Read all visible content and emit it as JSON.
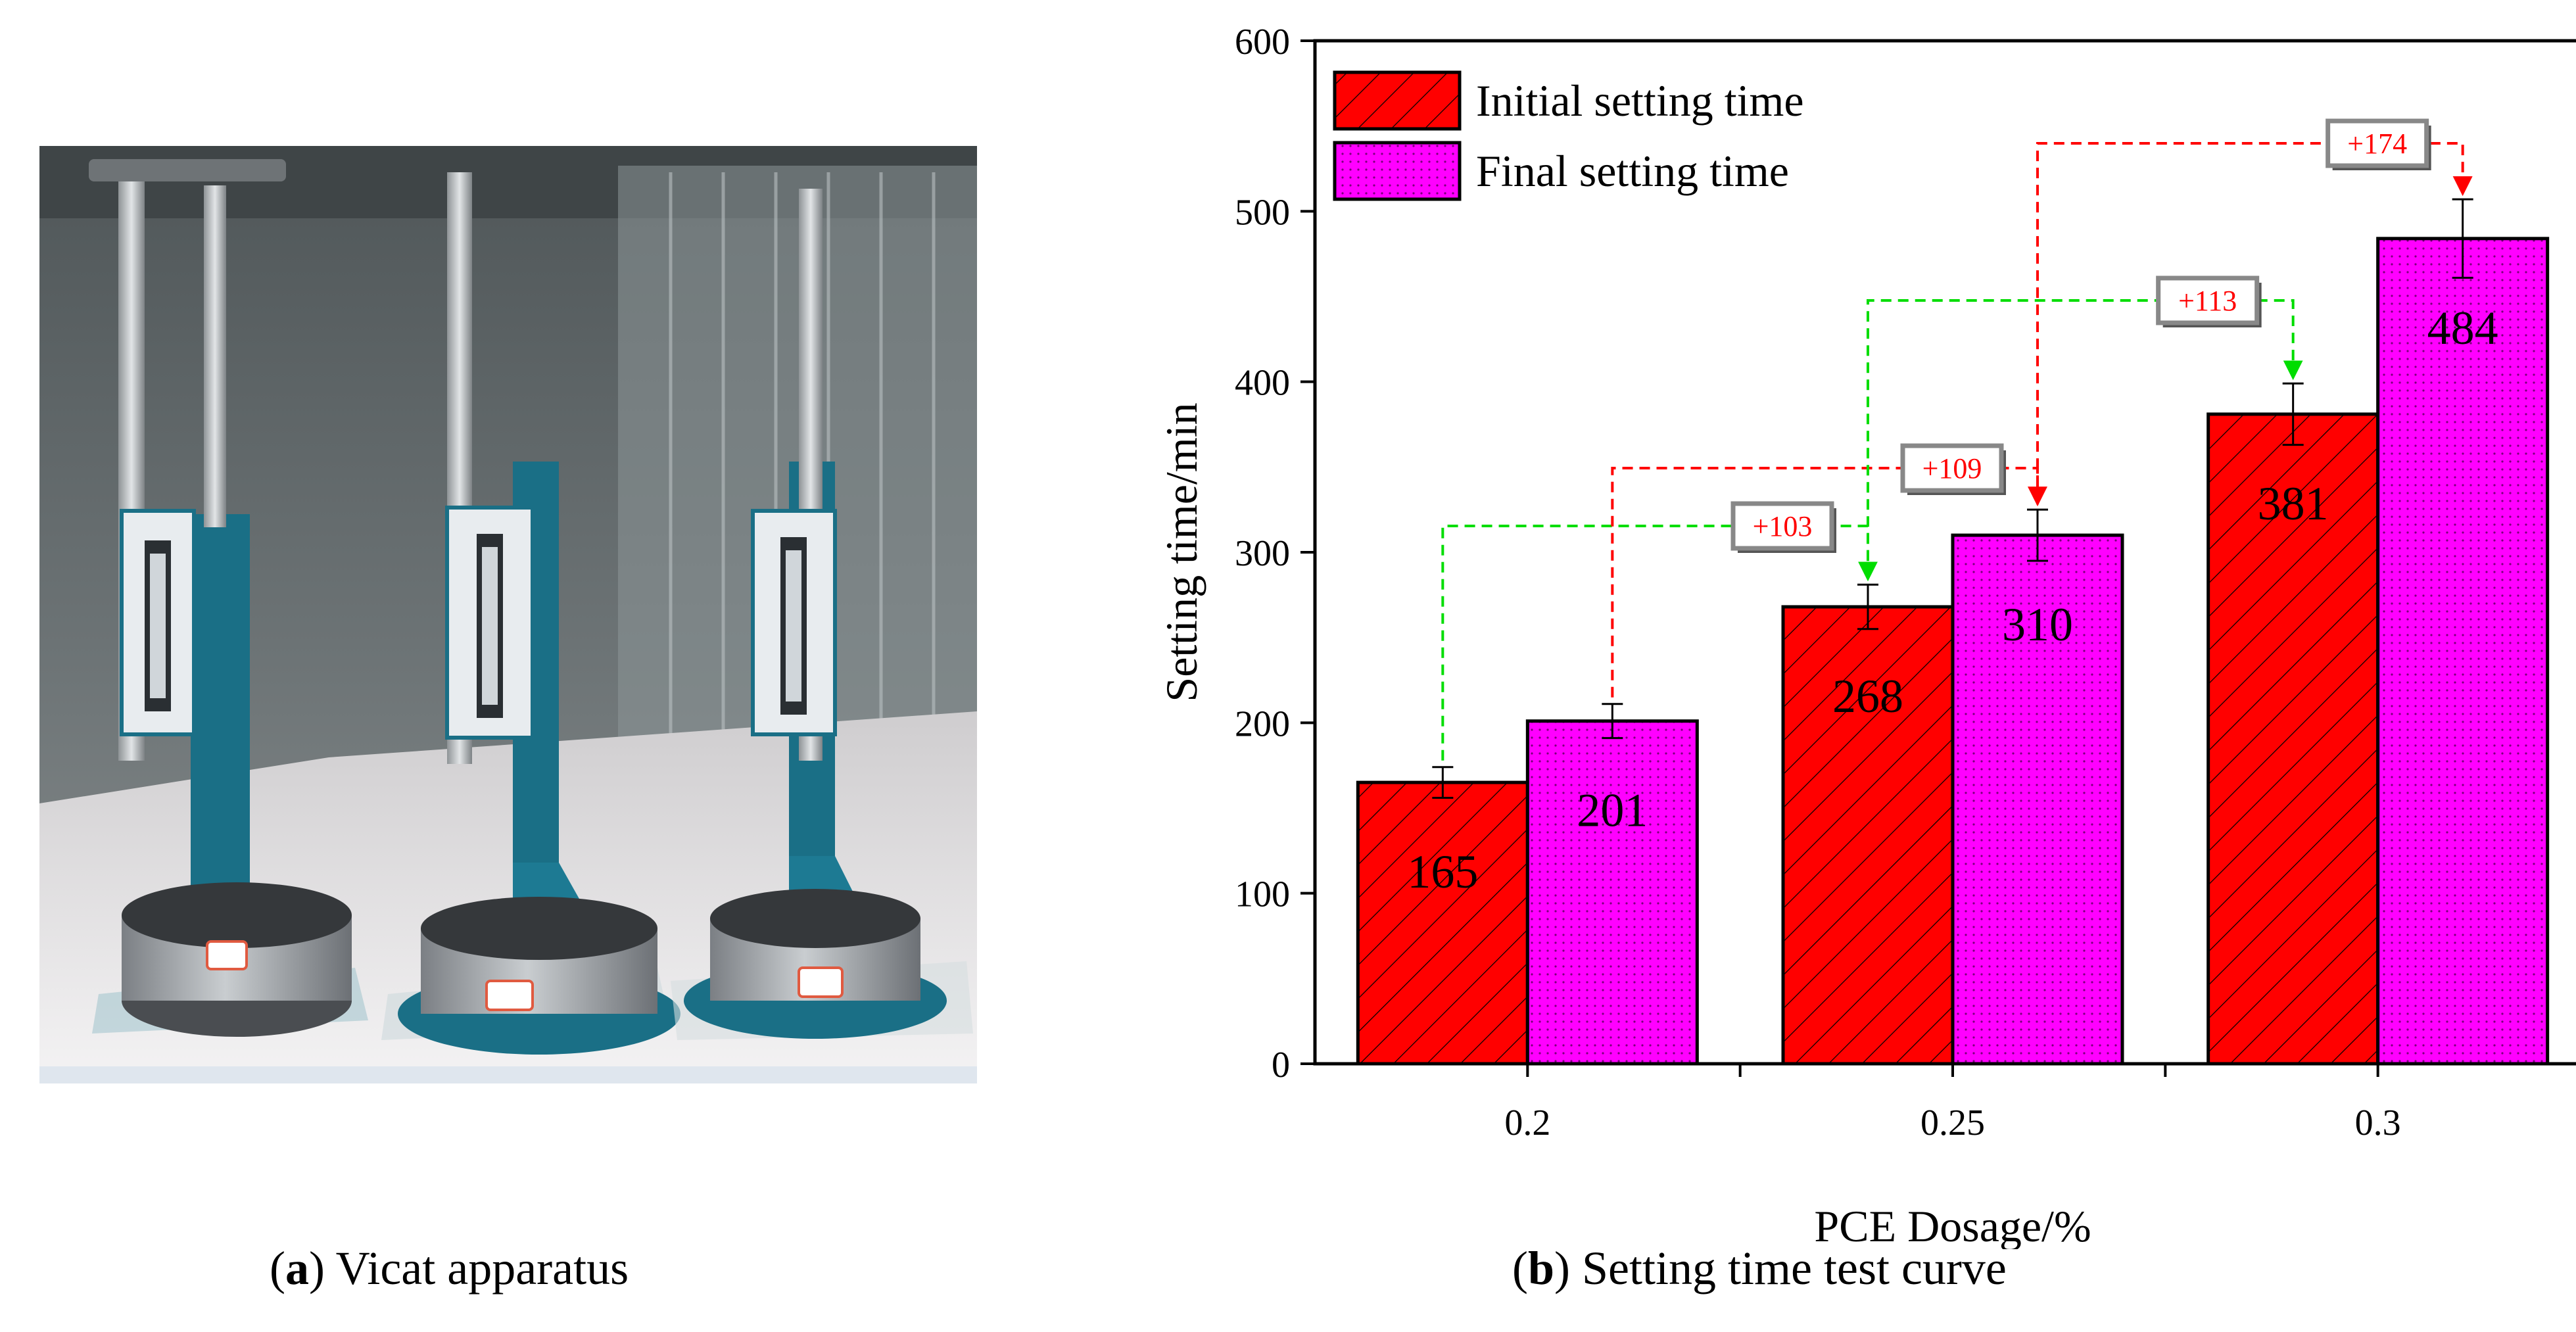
{
  "captions": {
    "a_letter": "a",
    "a_text": ") Vicat apparatus",
    "b_letter": "b",
    "b_text": ") Setting time test curve"
  },
  "photo": {
    "subject": "three Vicat needle apparatuses on glass plates",
    "colors": {
      "frame": "#1a6f86",
      "rod": "#b8bcc0",
      "mold": "#9a9ea3",
      "wall": "#5b6264",
      "table": "#e4e2e2"
    }
  },
  "chart_data": {
    "type": "bar",
    "categories": [
      "0.2",
      "0.25",
      "0.3"
    ],
    "series": [
      {
        "name": "Initial setting time",
        "values": [
          165,
          268,
          381
        ],
        "errors": [
          9,
          13,
          18
        ],
        "color": "#ff0000",
        "pattern": "diagonal-hatch"
      },
      {
        "name": "Final setting time",
        "values": [
          201,
          310,
          484
        ],
        "errors": [
          10,
          15,
          23
        ],
        "color": "#ff00ff",
        "pattern": "dotted"
      }
    ],
    "data_labels": [
      [
        "165",
        "201"
      ],
      [
        "268",
        "310"
      ],
      [
        "381",
        "484"
      ]
    ],
    "xlabel": "PCE Dosage/%",
    "ylabel": "Setting time/min",
    "ylim": [
      0,
      600
    ],
    "yticks": [
      0,
      100,
      200,
      300,
      400,
      500,
      600
    ],
    "legend_position": "top-left",
    "annotations": [
      {
        "label": "+103",
        "series": "Initial setting time",
        "from": "0.2",
        "to": "0.25",
        "color": "#00dd00"
      },
      {
        "label": "+109",
        "series": "Final setting time",
        "from": "0.2",
        "to": "0.25",
        "color": "#ff0000"
      },
      {
        "label": "+113",
        "series": "Initial setting time",
        "from": "0.25",
        "to": "0.3",
        "color": "#00dd00"
      },
      {
        "label": "+174",
        "series": "Final setting time",
        "from": "0.25",
        "to": "0.3",
        "color": "#ff0000"
      }
    ]
  }
}
